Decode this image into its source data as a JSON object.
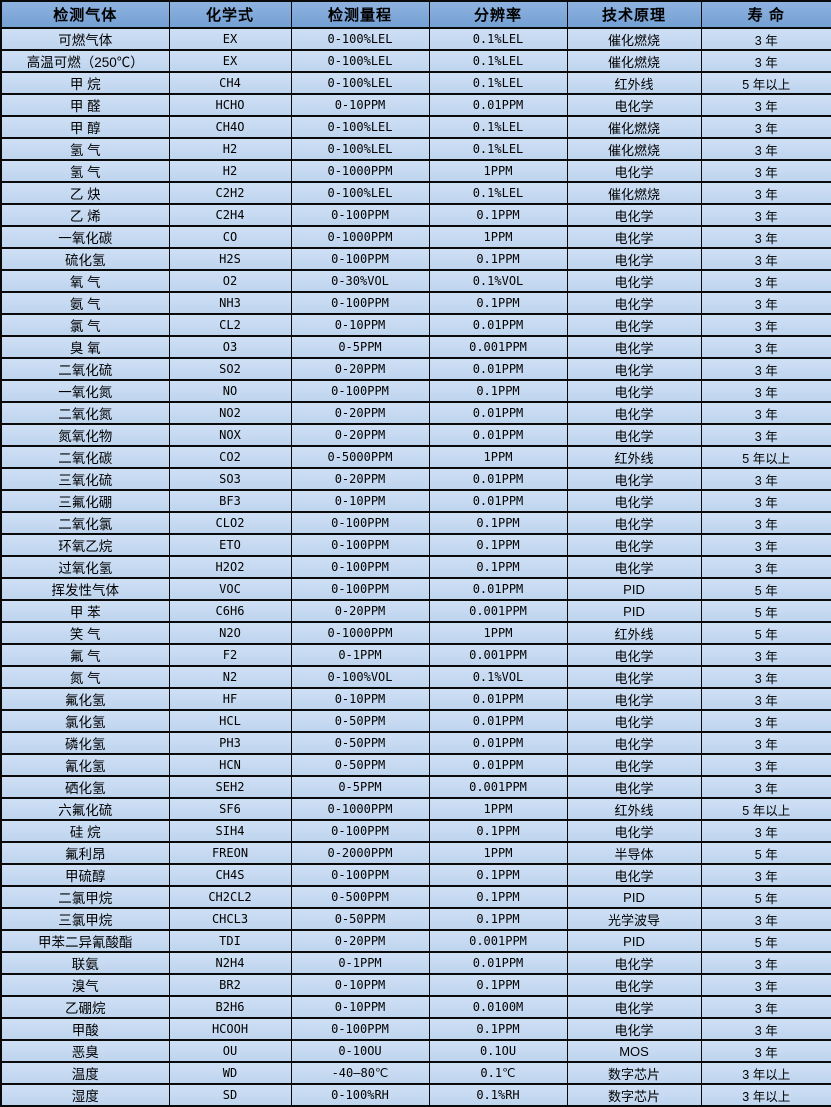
{
  "colors": {
    "border": "#0a0a0a",
    "header_bg_top": "#8fb3e0",
    "header_bg_bottom": "#74a0d4",
    "row_bg_top": "#cfe0f5",
    "row_bg_bottom": "#bed4ee",
    "text": "#000000"
  },
  "table": {
    "columns": [
      {
        "key": "gas",
        "label": "检测气体"
      },
      {
        "key": "formula",
        "label": "化学式"
      },
      {
        "key": "range",
        "label": "检测量程"
      },
      {
        "key": "resolution",
        "label": "分辨率"
      },
      {
        "key": "principle",
        "label": "技术原理"
      },
      {
        "key": "life",
        "label": "寿 命"
      }
    ],
    "rows": [
      [
        "可燃气体",
        "EX",
        "0-100%LEL",
        "0.1%LEL",
        "催化燃烧",
        "3 年"
      ],
      [
        "高温可燃（250℃）",
        "EX",
        "0-100%LEL",
        "0.1%LEL",
        "催化燃烧",
        "3 年"
      ],
      [
        "甲 烷",
        "CH4",
        "0-100%LEL",
        "0.1%LEL",
        "红外线",
        "5 年以上"
      ],
      [
        "甲 醛",
        "HCHO",
        "0-10PPM",
        "0.01PPM",
        "电化学",
        "3 年"
      ],
      [
        "甲 醇",
        "CH4O",
        "0-100%LEL",
        "0.1%LEL",
        "催化燃烧",
        "3 年"
      ],
      [
        "氢 气",
        "H2",
        "0-100%LEL",
        "0.1%LEL",
        "催化燃烧",
        "3 年"
      ],
      [
        "氢 气",
        "H2",
        "0-1000PPM",
        "1PPM",
        "电化学",
        "3 年"
      ],
      [
        "乙 炔",
        "C2H2",
        "0-100%LEL",
        "0.1%LEL",
        "催化燃烧",
        "3 年"
      ],
      [
        "乙 烯",
        "C2H4",
        "0-100PPM",
        "0.1PPM",
        "电化学",
        "3 年"
      ],
      [
        "一氧化碳",
        "CO",
        "0-1000PPM",
        "1PPM",
        "电化学",
        "3 年"
      ],
      [
        "硫化氢",
        "H2S",
        "0-100PPM",
        "0.1PPM",
        "电化学",
        "3 年"
      ],
      [
        "氧 气",
        "O2",
        "0-30%VOL",
        "0.1%VOL",
        "电化学",
        "3 年"
      ],
      [
        "氨 气",
        "NH3",
        "0-100PPM",
        "0.1PPM",
        "电化学",
        "3 年"
      ],
      [
        "氯 气",
        "CL2",
        "0-10PPM",
        "0.01PPM",
        "电化学",
        "3 年"
      ],
      [
        "臭 氧",
        "O3",
        "0-5PPM",
        "0.001PPM",
        "电化学",
        "3 年"
      ],
      [
        "二氧化硫",
        "SO2",
        "0-20PPM",
        "0.01PPM",
        "电化学",
        "3 年"
      ],
      [
        "一氧化氮",
        "NO",
        "0-100PPM",
        "0.1PPM",
        "电化学",
        "3 年"
      ],
      [
        "二氧化氮",
        "NO2",
        "0-20PPM",
        "0.01PPM",
        "电化学",
        "3 年"
      ],
      [
        "氮氧化物",
        "NOX",
        "0-20PPM",
        "0.01PPM",
        "电化学",
        "3 年"
      ],
      [
        "二氧化碳",
        "CO2",
        "0-5000PPM",
        "1PPM",
        "红外线",
        "5 年以上"
      ],
      [
        "三氧化硫",
        "SO3",
        "0-20PPM",
        "0.01PPM",
        "电化学",
        "3 年"
      ],
      [
        "三氟化硼",
        "BF3",
        "0-10PPM",
        "0.01PPM",
        "电化学",
        "3 年"
      ],
      [
        "二氧化氯",
        "CLO2",
        "0-100PPM",
        "0.1PPM",
        "电化学",
        "3 年"
      ],
      [
        "环氧乙烷",
        "ETO",
        "0-100PPM",
        "0.1PPM",
        "电化学",
        "3 年"
      ],
      [
        "过氧化氢",
        "H2O2",
        "0-100PPM",
        "0.1PPM",
        "电化学",
        "3 年"
      ],
      [
        "挥发性气体",
        "VOC",
        "0-100PPM",
        "0.01PPM",
        "PID",
        "5 年"
      ],
      [
        "甲 苯",
        "C6H6",
        "0-20PPM",
        "0.001PPM",
        "PID",
        "5 年"
      ],
      [
        "笑 气",
        "N2O",
        "0-1000PPM",
        "1PPM",
        "红外线",
        "5 年"
      ],
      [
        "氟 气",
        "F2",
        "0-1PPM",
        "0.001PPM",
        "电化学",
        "3 年"
      ],
      [
        "氮 气",
        "N2",
        "0-100%VOL",
        "0.1%VOL",
        "电化学",
        "3 年"
      ],
      [
        "氟化氢",
        "HF",
        "0-10PPM",
        "0.01PPM",
        "电化学",
        "3 年"
      ],
      [
        "氯化氢",
        "HCL",
        "0-50PPM",
        "0.01PPM",
        "电化学",
        "3 年"
      ],
      [
        "磷化氢",
        "PH3",
        "0-50PPM",
        "0.01PPM",
        "电化学",
        "3 年"
      ],
      [
        "氰化氢",
        "HCN",
        "0-50PPM",
        "0.01PPM",
        "电化学",
        "3 年"
      ],
      [
        "硒化氢",
        "SEH2",
        "0-5PPM",
        "0.001PPM",
        "电化学",
        "3 年"
      ],
      [
        "六氟化硫",
        "SF6",
        "0-1000PPM",
        "1PPM",
        "红外线",
        "5 年以上"
      ],
      [
        "硅 烷",
        "SIH4",
        "0-100PPM",
        "0.1PPM",
        "电化学",
        "3 年"
      ],
      [
        "氟利昂",
        "FREON",
        "0-2000PPM",
        "1PPM",
        "半导体",
        "5 年"
      ],
      [
        "甲硫醇",
        "CH4S",
        "0-100PPM",
        "0.1PPM",
        "电化学",
        "3 年"
      ],
      [
        "二氯甲烷",
        "CH2CL2",
        "0-500PPM",
        "0.1PPM",
        "PID",
        "5 年"
      ],
      [
        "三氯甲烷",
        "CHCL3",
        "0-50PPM",
        "0.1PPM",
        "光学波导",
        "3 年"
      ],
      [
        "甲苯二异氰酸酯",
        "TDI",
        "0-20PPM",
        "0.001PPM",
        "PID",
        "5 年"
      ],
      [
        "联氨",
        "N2H4",
        "0-1PPM",
        "0.01PPM",
        "电化学",
        "3 年"
      ],
      [
        "溴气",
        "BR2",
        "0-10PPM",
        "0.1PPM",
        "电化学",
        "3 年"
      ],
      [
        "乙硼烷",
        "B2H6",
        "0-10PPM",
        "0.0100M",
        "电化学",
        "3 年"
      ],
      [
        "甲酸",
        "HCOOH",
        "0-100PPM",
        "0.1PPM",
        "电化学",
        "3 年"
      ],
      [
        "恶臭",
        "OU",
        "0-10OU",
        "0.1OU",
        "MOS",
        "3 年"
      ],
      [
        "温度",
        "WD",
        "-40—80℃",
        "0.1℃",
        "数字芯片",
        "3 年以上"
      ],
      [
        "湿度",
        "SD",
        "0-100%RH",
        "0.1%RH",
        "数字芯片",
        "3 年以上"
      ]
    ]
  }
}
